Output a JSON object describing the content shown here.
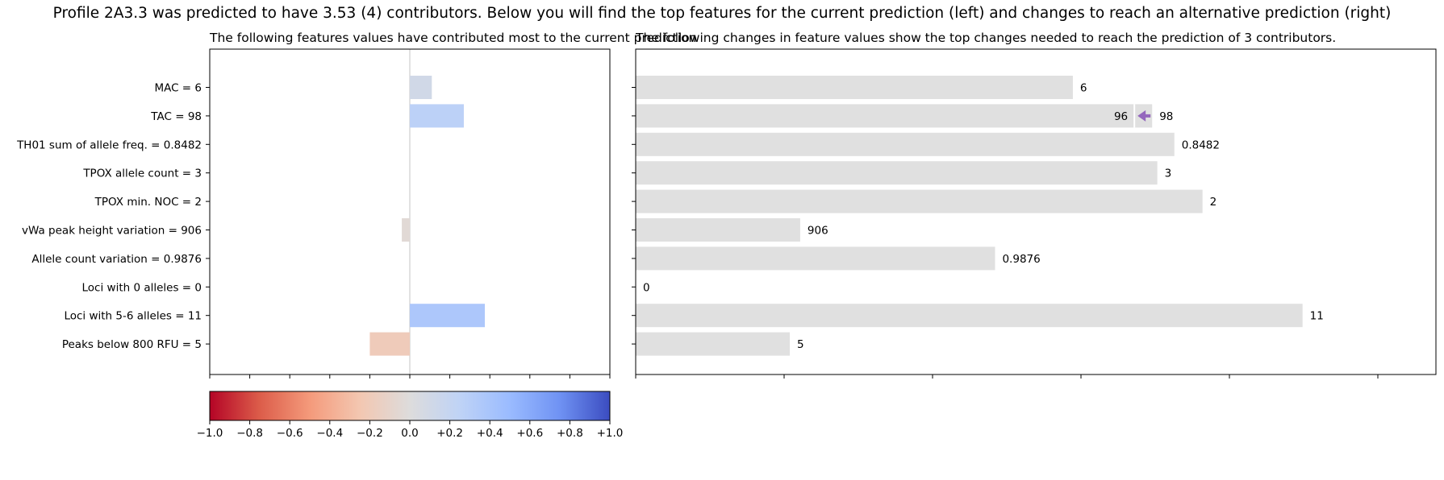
{
  "suptitle": "Profile 2A3.3 was predicted to have 3.53 (4) contributors. Below you will find the top features for the current prediction (left) and changes to reach an alternative prediction (right)",
  "chart_data": [
    {
      "type": "bar",
      "orientation": "horizontal",
      "title": "The following features values have contributed most to the current prediction",
      "categories": [
        "MAC = 6",
        "TAC = 98",
        "TH01 sum of allele freq. = 0.8482",
        "TPOX allele count = 3",
        "TPOX min. NOC = 2",
        "vWa peak height variation = 906",
        "Allele count variation = 0.9876",
        "Loci with 0 alleles = 0",
        "Loci with 5-6 alleles = 11",
        "Peaks below 800 RFU = 5"
      ],
      "values": [
        0.11,
        0.27,
        0,
        0,
        0,
        -0.04,
        0,
        0,
        0.375,
        -0.2
      ],
      "xlim": [
        -1.0,
        1.0
      ],
      "colormap": "coolwarm",
      "zero_line": true
    },
    {
      "type": "bar",
      "orientation": "horizontal",
      "title": "The following changes in feature values show the top changes needed to reach the prediction of 3 contributors.",
      "values": [
        0.59,
        0.697,
        0.727,
        0.704,
        0.765,
        0.222,
        0.485,
        0,
        0.9,
        0.208
      ],
      "value_labels": [
        "6",
        "98",
        "0.8482",
        "3",
        "2",
        "906",
        "0.9876",
        "0",
        "11",
        "5"
      ],
      "changes": [
        {
          "category": "TAC = 98",
          "from": "98",
          "to": "96",
          "to_value": 0.673
        }
      ],
      "bar_color": "#e0e0e0",
      "arrow_color": "#9467bd",
      "xlim": [
        0,
        1.08
      ]
    }
  ],
  "colorbar": {
    "ticks": [
      "−1.0",
      "−0.8",
      "−0.6",
      "−0.4",
      "−0.2",
      "0.0",
      "+0.2",
      "+0.4",
      "+0.6",
      "+0.8",
      "+1.0"
    ],
    "range": [
      -1.0,
      1.0
    ],
    "colormap": "coolwarm"
  }
}
